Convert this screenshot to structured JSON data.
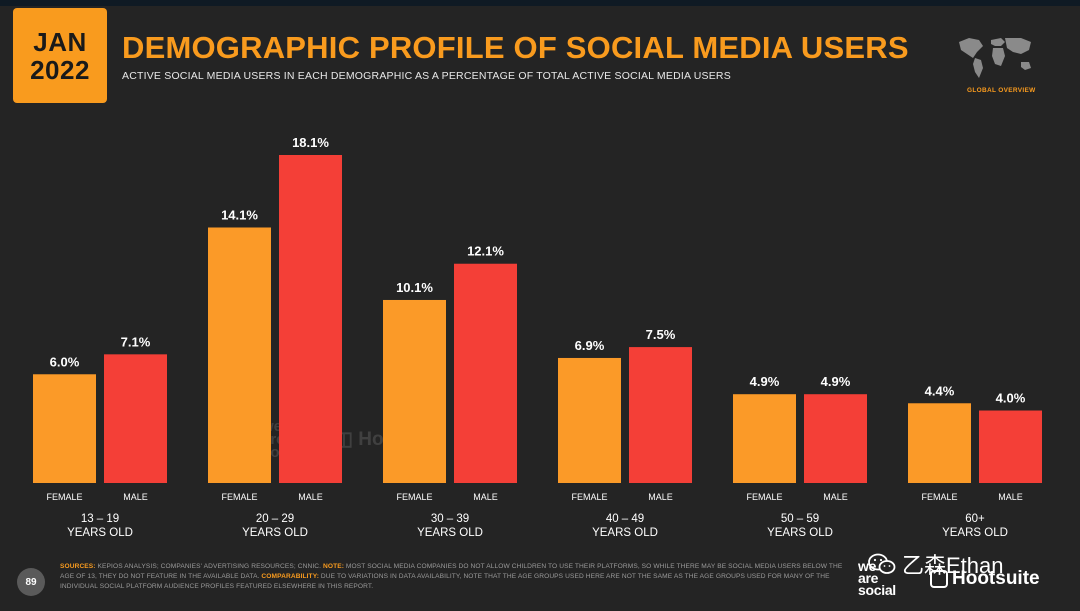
{
  "header": {
    "month": "JAN",
    "year": "2022",
    "title": "DEMOGRAPHIC PROFILE OF SOCIAL MEDIA USERS",
    "subtitle": "ACTIVE SOCIAL MEDIA USERS IN EACH DEMOGRAPHIC AS A PERCENTAGE OF TOTAL ACTIVE SOCIAL MEDIA USERS",
    "section": "GLOBAL OVERVIEW"
  },
  "colors": {
    "background": "#242424",
    "accent": "#f99b1e",
    "female": "#fb9a28",
    "male": "#f43f37"
  },
  "chart_data": {
    "type": "bar",
    "categories": [
      "13 – 19\nYEARS OLD",
      "20 – 29\nYEARS OLD",
      "30 – 39\nYEARS OLD",
      "40 – 49\nYEARS OLD",
      "50 – 59\nYEARS OLD",
      "60+\nYEARS OLD"
    ],
    "series": [
      {
        "name": "FEMALE",
        "values": [
          6.0,
          14.1,
          10.1,
          6.9,
          4.9,
          4.4
        ],
        "labels": [
          "6.0%",
          "14.1%",
          "10.1%",
          "6.9%",
          "4.9%",
          "4.4%"
        ]
      },
      {
        "name": "MALE",
        "values": [
          7.1,
          18.1,
          12.1,
          7.5,
          4.9,
          4.0
        ],
        "labels": [
          "7.1%",
          "18.1%",
          "12.1%",
          "7.5%",
          "4.9%",
          "4.0%"
        ]
      }
    ],
    "unit": "%",
    "ylim": [
      0,
      18.1
    ],
    "grid": false,
    "legend": "none"
  },
  "footer": {
    "sources_label": "SOURCES:",
    "sources_text": " KEPIOS ANALYSIS; COMPANIES' ADVERTISING RESOURCES; CNNIC.",
    "note_label": " NOTE:",
    "note_text": " MOST SOCIAL MEDIA COMPANIES DO NOT ALLOW CHILDREN TO USE THEIR PLATFORMS, SO WHILE THERE MAY BE SOCIAL MEDIA USERS BELOW THE AGE OF 13, THEY DO NOT FEATURE IN THE AVAILABLE DATA.",
    "comparability_label": " COMPARABILITY:",
    "comparability_text": " DUE TO VARIATIONS IN DATA AVAILABILITY, NOTE THAT THE AGE GROUPS USED HERE ARE NOT THE SAME AS THE AGE GROUPS USED FOR MANY OF THE INDIVIDUAL SOCIAL PLATFORM AUDIENCE PROFILES FEATURED ELSEWHERE IN THIS REPORT.",
    "page_number": "89"
  },
  "branding": {
    "was_line1": "we",
    "was_line2": "are",
    "was_line3": "social",
    "hootsuite": "Hootsuite",
    "wechat_name": "乙森Ethan"
  }
}
